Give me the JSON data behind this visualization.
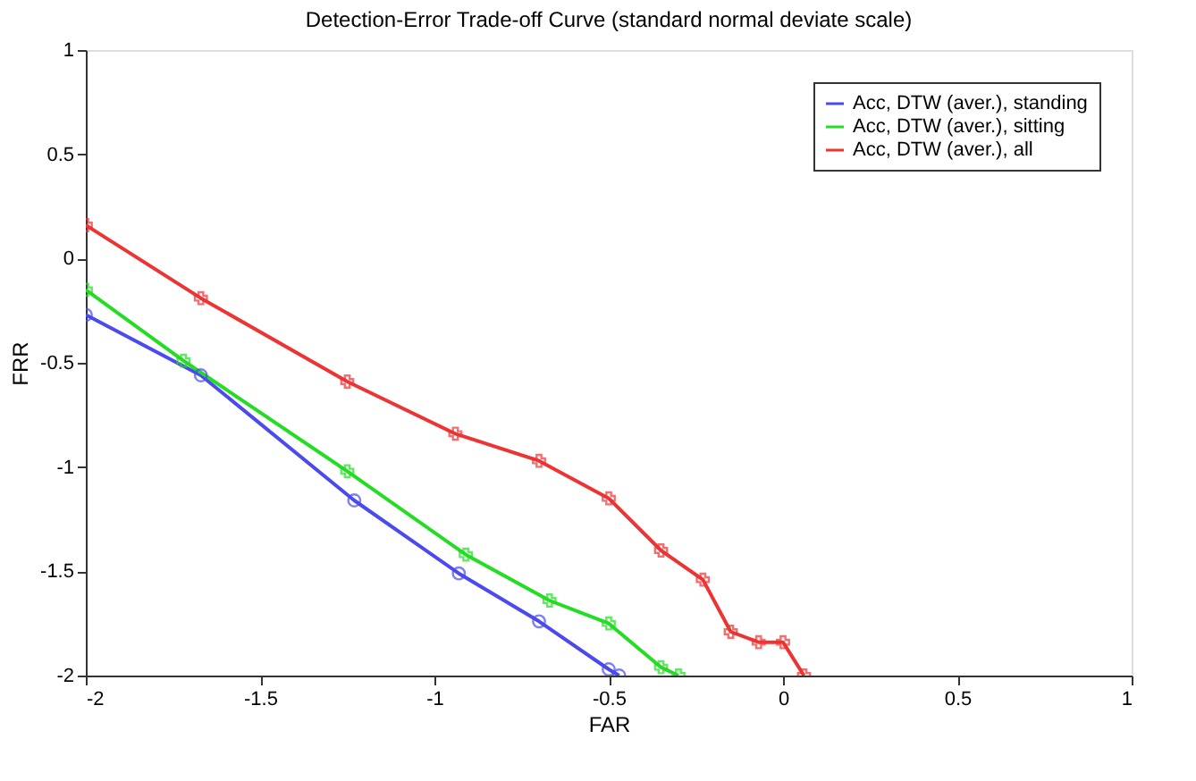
{
  "chart_data": {
    "type": "line",
    "title": "Detection-Error Trade-off Curve (standard normal deviate scale)",
    "xlabel": "FAR",
    "ylabel": "FRR",
    "series": [
      {
        "name": "Acc, DTW (aver.), standing",
        "color": "#4a4af0",
        "marker": "circle",
        "x": [
          -2,
          -1.67,
          -1.23,
          -0.93,
          -0.7,
          -0.5,
          -0.47
        ],
        "values": [
          -0.27,
          -0.56,
          -1.16,
          -1.51,
          -1.74,
          -1.97,
          -2.0
        ]
      },
      {
        "name": "Acc, DTW (aver.), sitting",
        "color": "#22dd22",
        "marker": "cross",
        "x": [
          -2,
          -1.72,
          -1.25,
          -0.91,
          -0.67,
          -0.5,
          -0.35,
          -0.3
        ],
        "values": [
          -0.15,
          -0.49,
          -1.02,
          -1.42,
          -1.64,
          -1.75,
          -1.96,
          -2.0
        ]
      },
      {
        "name": "Acc, DTW (aver.), all",
        "color": "#ee3333",
        "marker": "cross",
        "x": [
          -2,
          -1.67,
          -1.25,
          -0.94,
          -0.7,
          -0.5,
          -0.35,
          -0.23,
          -0.15,
          -0.07,
          0.0,
          0.06
        ],
        "values": [
          0.16,
          -0.19,
          -0.59,
          -0.84,
          -0.97,
          -1.15,
          -1.4,
          -1.54,
          -1.79,
          -1.84,
          -1.84,
          -2.0
        ]
      }
    ],
    "xlim": [
      -2,
      1
    ],
    "xticks": [
      -2,
      -1.5,
      -1,
      -0.5,
      0,
      0.5,
      1
    ],
    "ylim": [
      -2,
      1
    ],
    "yticks": [
      -2,
      -1.5,
      -1,
      -0.5,
      0,
      0.5,
      1
    ],
    "grid": false,
    "legend": "top right",
    "line_style": "solid"
  }
}
